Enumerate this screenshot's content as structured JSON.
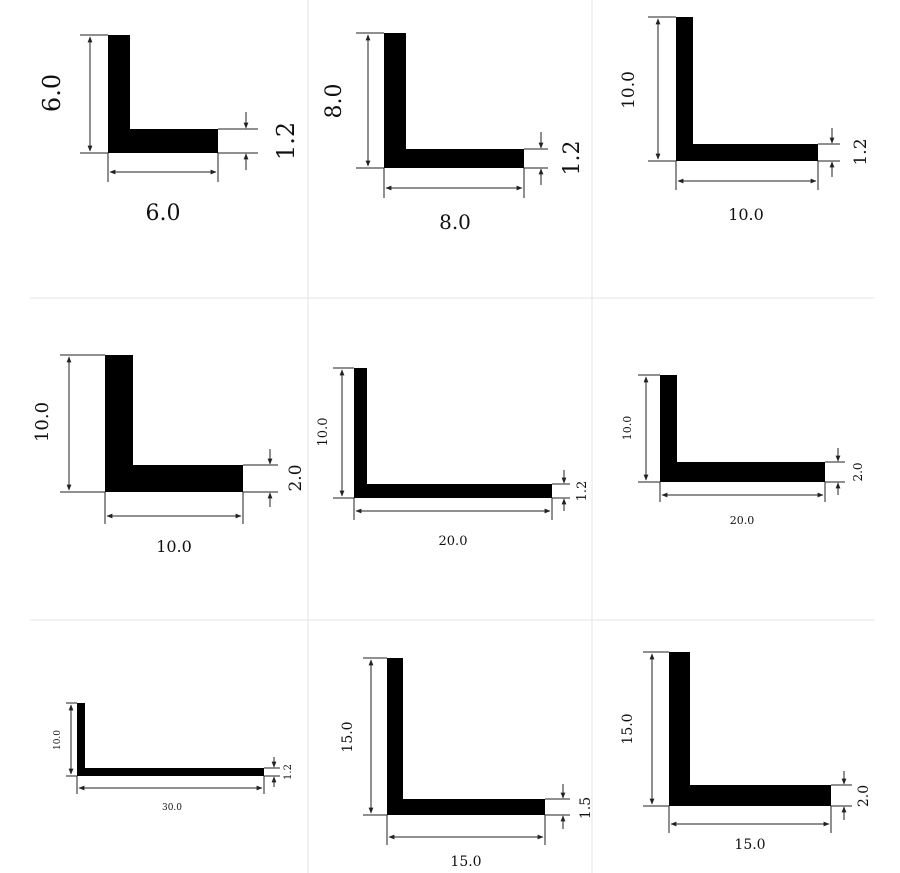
{
  "profiles": [
    {
      "leg_vertical": "6.0",
      "leg_horizontal": "6.0",
      "thickness": "1.2"
    },
    {
      "leg_vertical": "8.0",
      "leg_horizontal": "8.0",
      "thickness": "1.2"
    },
    {
      "leg_vertical": "10.0",
      "leg_horizontal": "10.0",
      "thickness": "1.2"
    },
    {
      "leg_vertical": "10.0",
      "leg_horizontal": "10.0",
      "thickness": "2.0"
    },
    {
      "leg_vertical": "10.0",
      "leg_horizontal": "20.0",
      "thickness": "1.2"
    },
    {
      "leg_vertical": "10.0",
      "leg_horizontal": "20.0",
      "thickness": "2.0"
    },
    {
      "leg_vertical": "10.0",
      "leg_horizontal": "30.0",
      "thickness": "1.2"
    },
    {
      "leg_vertical": "15.0",
      "leg_horizontal": "15.0",
      "thickness": "1.5"
    },
    {
      "leg_vertical": "15.0",
      "leg_horizontal": "15.0",
      "thickness": "2.0"
    }
  ],
  "colors": {
    "profile_fill": "#000000",
    "dimension_line": "#222222",
    "grid_line": "#e4e4e4",
    "background": "#ffffff"
  }
}
